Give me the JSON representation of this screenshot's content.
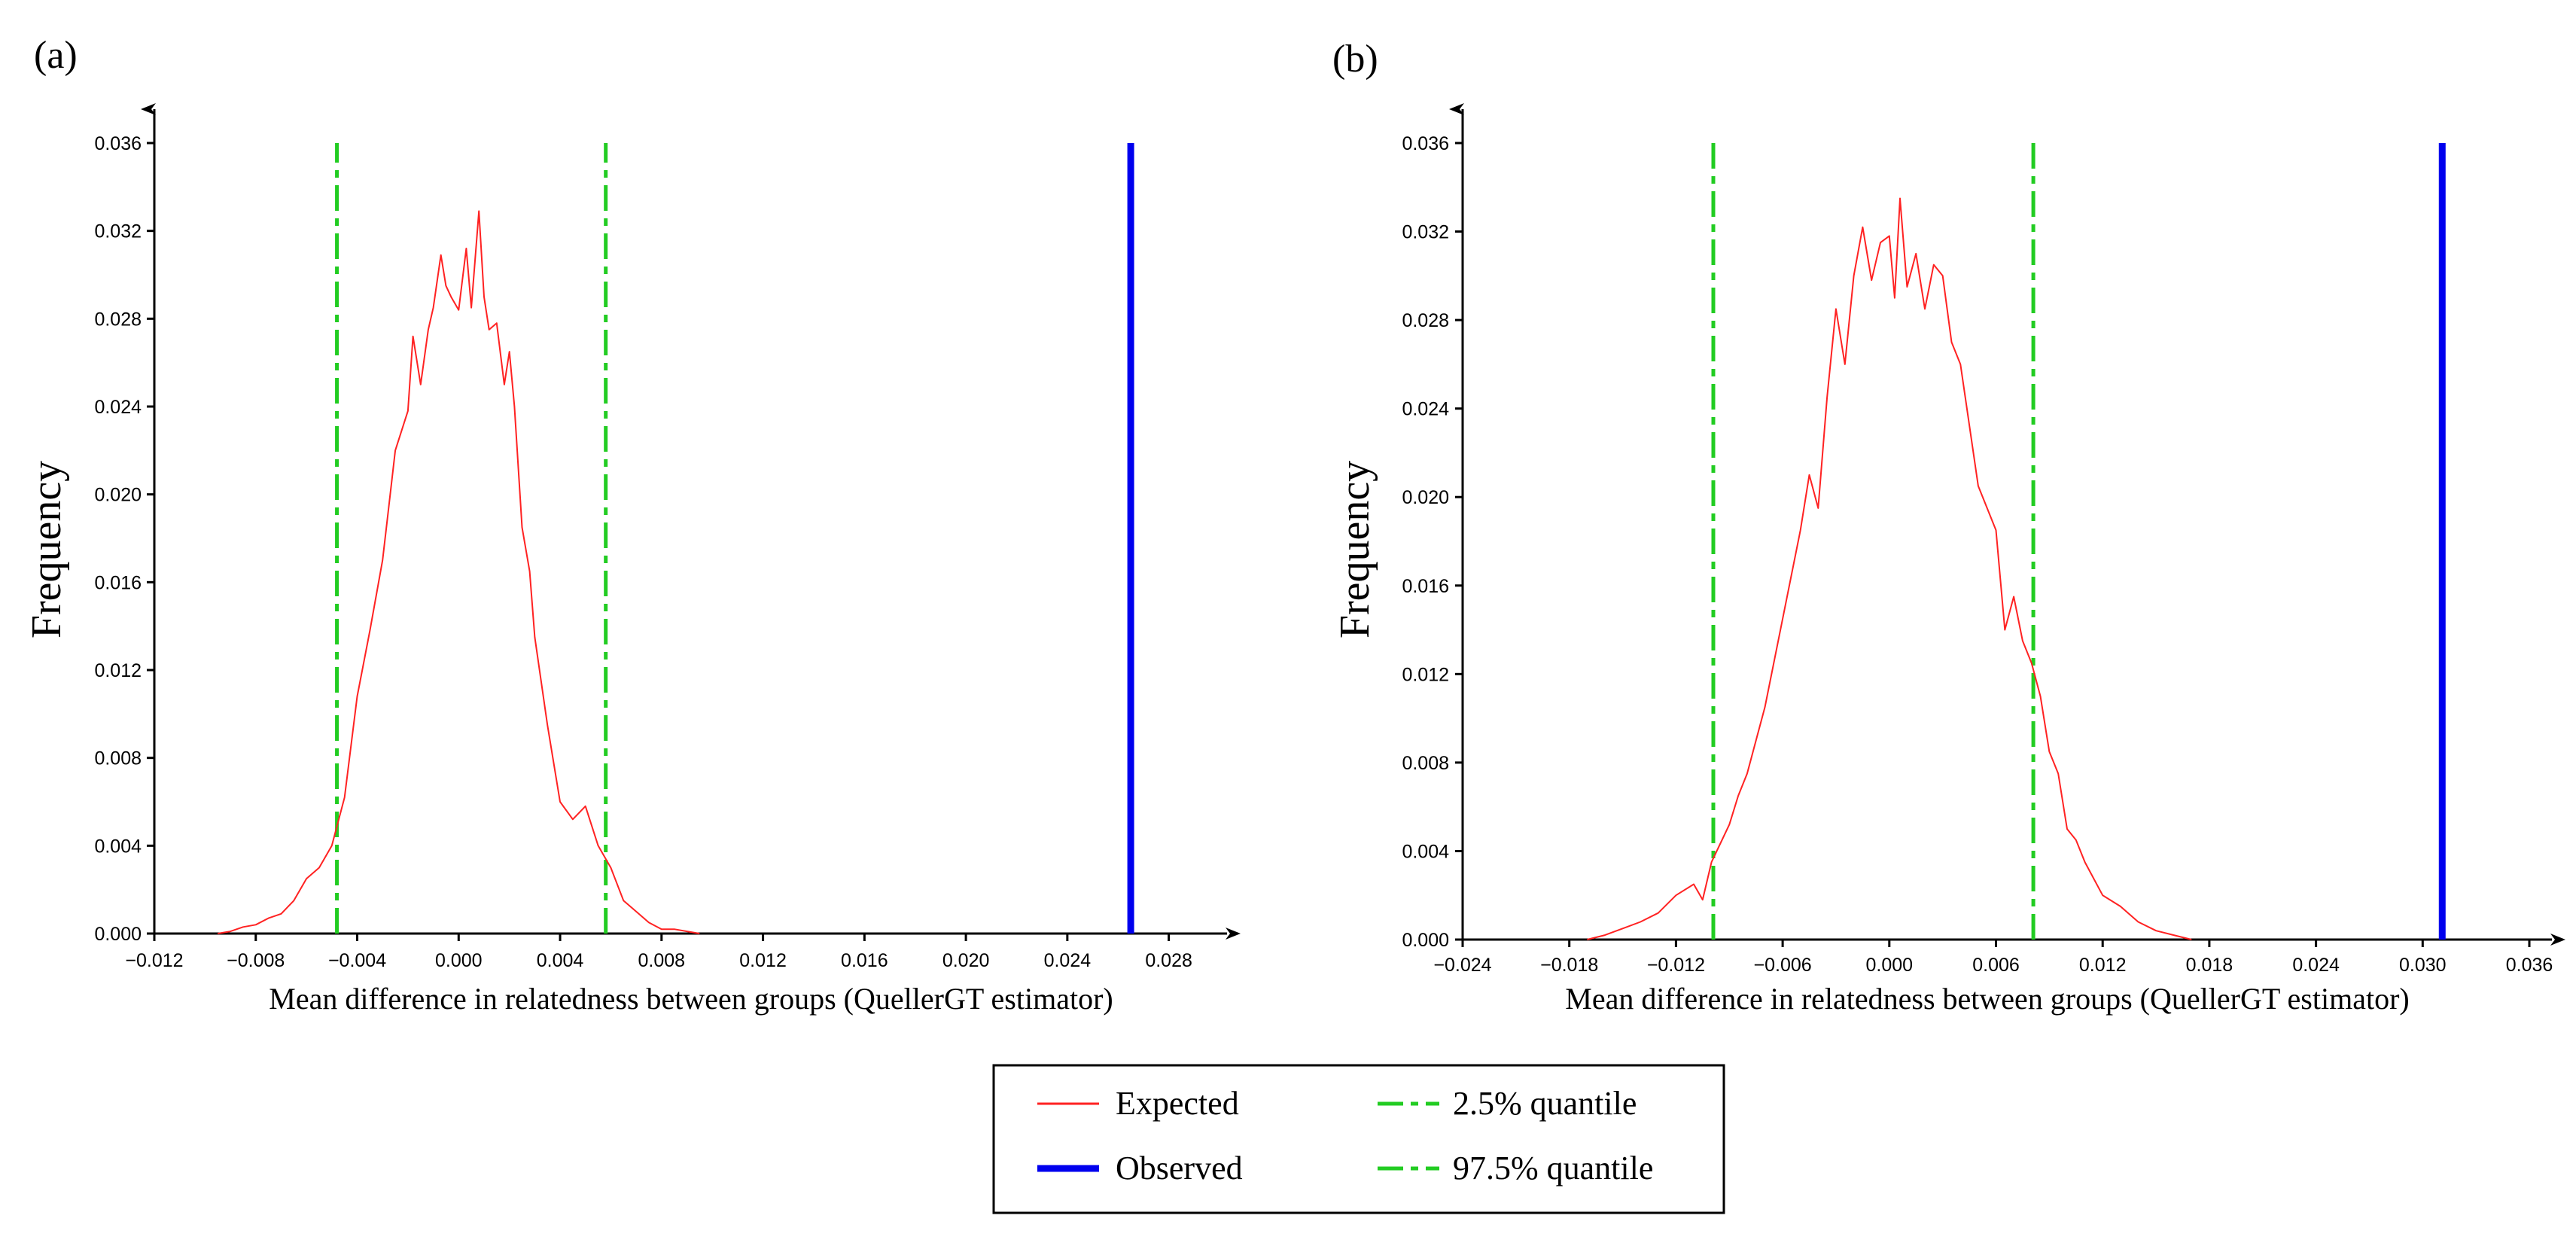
{
  "chart_data": [
    {
      "panel_label": "(a)",
      "type": "line",
      "xlabel": "Mean difference in relatedness between groups (QuellerGT  estimator)",
      "ylabel": "Frequency",
      "xlim": [
        -0.012,
        0.03
      ],
      "ylim": [
        0,
        0.036
      ],
      "x_ticks": [
        -0.012,
        -0.008,
        -0.004,
        0.0,
        0.004,
        0.008,
        0.012,
        0.016,
        0.02,
        0.024,
        0.028
      ],
      "x_tick_labels": [
        "−0.012",
        "−0.008",
        "−0.004",
        "0.000",
        "0.004",
        "0.008",
        "0.012",
        "0.016",
        "0.020",
        "0.024",
        "0.028"
      ],
      "y_ticks": [
        0,
        0.004,
        0.008,
        0.012,
        0.016,
        0.02,
        0.024,
        0.028,
        0.032,
        0.036
      ],
      "y_tick_labels": [
        "0.000",
        "0.004",
        "0.008",
        "0.012",
        "0.016",
        "0.020",
        "0.024",
        "0.028",
        "0.032",
        "0.036"
      ],
      "series": [
        {
          "name": "Expected",
          "color": "#ff2222",
          "x": [
            -0.0095,
            -0.009,
            -0.0085,
            -0.008,
            -0.0075,
            -0.007,
            -0.0065,
            -0.006,
            -0.0055,
            -0.005,
            -0.0045,
            -0.004,
            -0.0035,
            -0.003,
            -0.0028,
            -0.0025,
            -0.002,
            -0.0018,
            -0.0015,
            -0.0012,
            -0.001,
            -0.0007,
            -0.0005,
            -0.0003,
            0.0,
            0.0003,
            0.0005,
            0.0008,
            0.001,
            0.0012,
            0.0015,
            0.0018,
            0.002,
            0.0022,
            0.0025,
            0.0028,
            0.003,
            0.0035,
            0.004,
            0.0045,
            0.005,
            0.0055,
            0.006,
            0.0065,
            0.007,
            0.0075,
            0.008,
            0.0085,
            0.009,
            0.0095
          ],
          "values": [
            0.0,
            0.0001,
            0.0003,
            0.0004,
            0.0007,
            0.0009,
            0.0015,
            0.0025,
            0.003,
            0.004,
            0.0062,
            0.0108,
            0.0138,
            0.017,
            0.019,
            0.022,
            0.0238,
            0.0272,
            0.025,
            0.0275,
            0.0285,
            0.0309,
            0.0295,
            0.029,
            0.0284,
            0.0312,
            0.0285,
            0.0329,
            0.029,
            0.0275,
            0.0278,
            0.025,
            0.0265,
            0.024,
            0.0185,
            0.0165,
            0.0135,
            0.0095,
            0.006,
            0.0052,
            0.0058,
            0.004,
            0.003,
            0.0015,
            0.001,
            0.0005,
            0.0002,
            0.0002,
            0.0001,
            0.0
          ],
          "width": 2
        },
        {
          "name": "Observed",
          "color": "#0000ee",
          "x_value": 0.0265,
          "width": 9
        }
      ],
      "quantiles": [
        {
          "name": "2.5% quantile",
          "x_value": -0.0048,
          "color": "#22cc22"
        },
        {
          "name": "97.5% quantile",
          "x_value": 0.0058,
          "color": "#22cc22"
        }
      ]
    },
    {
      "panel_label": "(b)",
      "type": "line",
      "xlabel": "Mean difference in relatedness between groups (QuellerGT  estimator)",
      "ylabel": "Frequency",
      "xlim": [
        -0.024,
        0.036
      ],
      "ylim": [
        0,
        0.036
      ],
      "x_ticks": [
        -0.024,
        -0.018,
        -0.012,
        -0.006,
        0.0,
        0.006,
        0.012,
        0.018,
        0.024,
        0.03,
        0.036
      ],
      "x_tick_labels": [
        "−0.024",
        "−0.018",
        "−0.012",
        "−0.006",
        "0.000",
        "0.006",
        "0.012",
        "0.018",
        "0.024",
        "0.030",
        "0.036"
      ],
      "y_ticks": [
        0,
        0.004,
        0.008,
        0.012,
        0.016,
        0.02,
        0.024,
        0.028,
        0.032,
        0.036
      ],
      "y_tick_labels": [
        "0.000",
        "0.004",
        "0.008",
        "0.012",
        "0.016",
        "0.020",
        "0.024",
        "0.028",
        "0.032",
        "0.036"
      ],
      "series": [
        {
          "name": "Expected",
          "color": "#ff2222",
          "x": [
            -0.017,
            -0.016,
            -0.015,
            -0.014,
            -0.013,
            -0.012,
            -0.011,
            -0.0105,
            -0.01,
            -0.009,
            -0.0085,
            -0.008,
            -0.007,
            -0.006,
            -0.005,
            -0.0045,
            -0.004,
            -0.0035,
            -0.003,
            -0.0025,
            -0.002,
            -0.0015,
            -0.001,
            -0.0005,
            0.0,
            0.0003,
            0.0006,
            0.001,
            0.0015,
            0.002,
            0.0025,
            0.003,
            0.0035,
            0.004,
            0.005,
            0.006,
            0.0065,
            0.007,
            0.0075,
            0.008,
            0.0085,
            0.009,
            0.0095,
            0.01,
            0.0105,
            0.011,
            0.012,
            0.013,
            0.014,
            0.015,
            0.016,
            0.017
          ],
          "values": [
            0.0,
            0.0002,
            0.0005,
            0.0008,
            0.0012,
            0.002,
            0.0025,
            0.0018,
            0.0035,
            0.0052,
            0.0065,
            0.0075,
            0.0105,
            0.0145,
            0.0185,
            0.021,
            0.0195,
            0.0245,
            0.0285,
            0.026,
            0.03,
            0.0322,
            0.0298,
            0.0315,
            0.0318,
            0.029,
            0.0335,
            0.0295,
            0.031,
            0.0285,
            0.0305,
            0.03,
            0.027,
            0.026,
            0.0205,
            0.0185,
            0.014,
            0.0155,
            0.0135,
            0.0125,
            0.011,
            0.0085,
            0.0075,
            0.005,
            0.0045,
            0.0035,
            0.002,
            0.0015,
            0.0008,
            0.0004,
            0.0002,
            0.0
          ],
          "width": 2
        },
        {
          "name": "Observed",
          "color": "#0000ee",
          "x_value": 0.0311,
          "width": 9
        }
      ],
      "quantiles": [
        {
          "name": "2.5% quantile",
          "x_value": -0.0099,
          "color": "#22cc22"
        },
        {
          "name": "97.5% quantile",
          "x_value": 0.0081,
          "color": "#22cc22"
        }
      ]
    }
  ],
  "legend": {
    "items": [
      {
        "label": "Expected",
        "color": "#ff2222",
        "style": "solid-thin"
      },
      {
        "label": "2.5% quantile",
        "color": "#22cc22",
        "style": "dashed"
      },
      {
        "label": "Observed",
        "color": "#0000ee",
        "style": "solid-thick"
      },
      {
        "label": "97.5% quantile",
        "color": "#22cc22",
        "style": "dashed"
      }
    ]
  }
}
